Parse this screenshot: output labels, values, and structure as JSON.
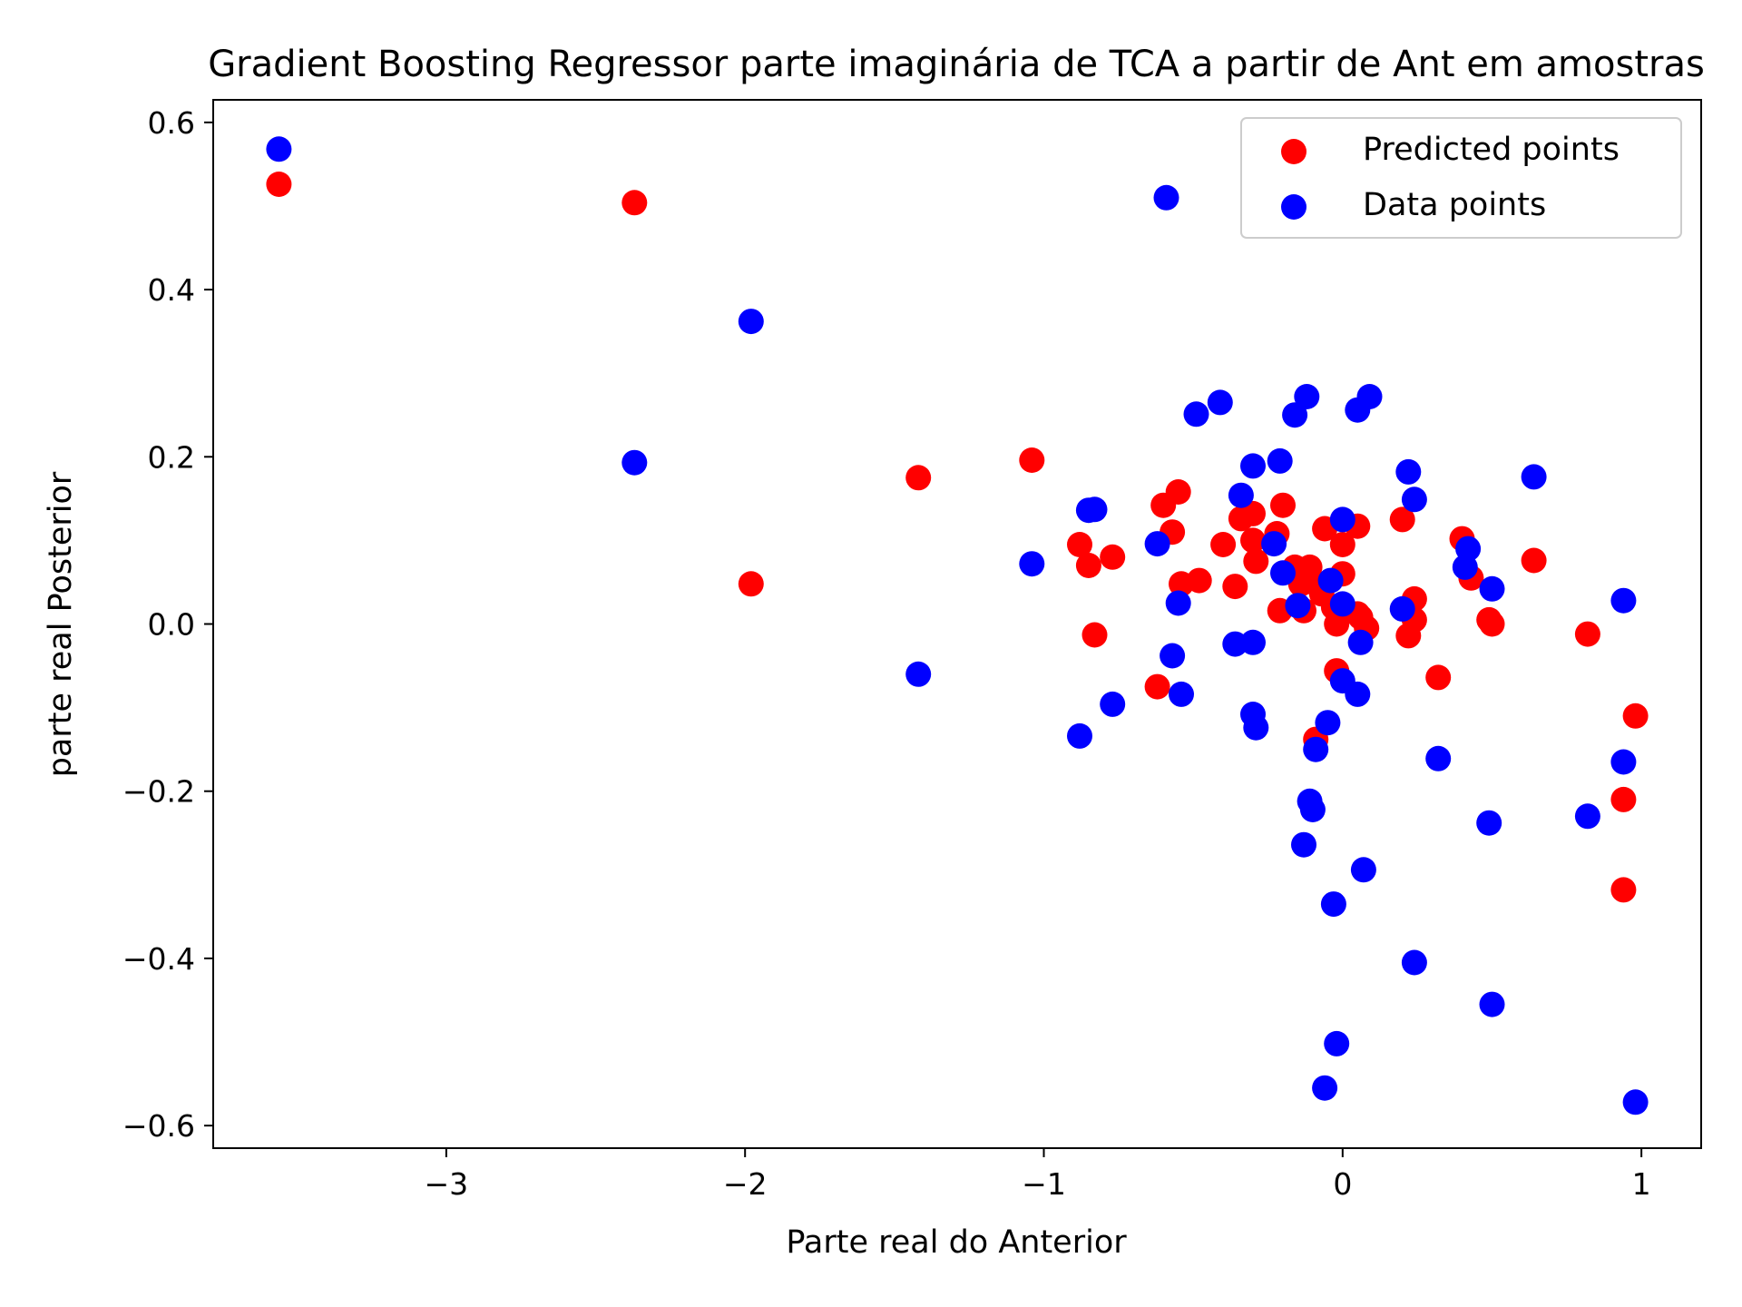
{
  "chart_data": {
    "type": "scatter",
    "title": "Gradient Boosting Regressor parte imaginária de TCA a partir de Ant em amostras",
    "xlabel": "Parte real do Anterior",
    "ylabel": "parte real Posterior",
    "xlim": [
      -3.78,
      1.2
    ],
    "ylim": [
      -0.627,
      0.627
    ],
    "x_ticks": [
      {
        "value": -3,
        "label": "−3"
      },
      {
        "value": -2,
        "label": "−2"
      },
      {
        "value": -1,
        "label": "−1"
      },
      {
        "value": 0,
        "label": "0"
      },
      {
        "value": 1,
        "label": "1"
      }
    ],
    "y_ticks": [
      {
        "value": 0.6,
        "label": "0.6"
      },
      {
        "value": 0.4,
        "label": "0.4"
      },
      {
        "value": 0.2,
        "label": "0.2"
      },
      {
        "value": 0.0,
        "label": "0.0"
      },
      {
        "value": -0.2,
        "label": "−0.2"
      },
      {
        "value": -0.4,
        "label": "−0.4"
      },
      {
        "value": -0.6,
        "label": "−0.6"
      }
    ],
    "grid": false,
    "legend_position": "top-right",
    "series": [
      {
        "name": "Predicted points",
        "color": "#ff0000",
        "points": [
          [
            -3.56,
            0.526
          ],
          [
            -2.37,
            0.504
          ],
          [
            -1.98,
            0.048
          ],
          [
            -1.42,
            0.175
          ],
          [
            -1.04,
            0.196
          ],
          [
            -0.88,
            0.095
          ],
          [
            -0.85,
            0.07
          ],
          [
            -0.83,
            -0.013
          ],
          [
            -0.77,
            0.08
          ],
          [
            -0.62,
            -0.075
          ],
          [
            -0.6,
            0.142
          ],
          [
            -0.57,
            0.11
          ],
          [
            -0.55,
            0.158
          ],
          [
            -0.54,
            0.048
          ],
          [
            -0.48,
            0.052
          ],
          [
            -0.4,
            0.095
          ],
          [
            -0.36,
            0.045
          ],
          [
            -0.34,
            0.126
          ],
          [
            -0.3,
            0.132
          ],
          [
            -0.3,
            0.1
          ],
          [
            -0.29,
            0.075
          ],
          [
            -0.22,
            0.108
          ],
          [
            -0.2,
            0.142
          ],
          [
            -0.21,
            0.016
          ],
          [
            -0.16,
            0.068
          ],
          [
            -0.14,
            0.048
          ],
          [
            -0.13,
            0.016
          ],
          [
            -0.11,
            0.068
          ],
          [
            -0.1,
            0.05
          ],
          [
            -0.09,
            -0.138
          ],
          [
            -0.07,
            0.036
          ],
          [
            -0.06,
            0.114
          ],
          [
            -0.03,
            0.02
          ],
          [
            -0.02,
            -0.056
          ],
          [
            -0.02,
            0.0
          ],
          [
            0.0,
            0.095
          ],
          [
            0.0,
            0.06
          ],
          [
            0.05,
            0.117
          ],
          [
            0.05,
            0.012
          ],
          [
            0.06,
            0.008
          ],
          [
            0.08,
            -0.005
          ],
          [
            0.2,
            0.125
          ],
          [
            0.22,
            -0.014
          ],
          [
            0.24,
            0.03
          ],
          [
            0.24,
            0.005
          ],
          [
            0.32,
            -0.064
          ],
          [
            0.4,
            0.102
          ],
          [
            0.43,
            0.055
          ],
          [
            0.49,
            0.005
          ],
          [
            0.5,
            0.0
          ],
          [
            0.64,
            0.076
          ],
          [
            0.82,
            -0.012
          ],
          [
            0.94,
            -0.21
          ],
          [
            0.94,
            -0.318
          ],
          [
            0.98,
            -0.11
          ]
        ]
      },
      {
        "name": "Data points",
        "color": "#0000ff",
        "points": [
          [
            -3.56,
            0.568
          ],
          [
            -2.37,
            0.193
          ],
          [
            -1.98,
            0.362
          ],
          [
            -1.42,
            -0.06
          ],
          [
            -1.04,
            0.072
          ],
          [
            -0.88,
            -0.134
          ],
          [
            -0.85,
            0.136
          ],
          [
            -0.83,
            0.137
          ],
          [
            -0.77,
            -0.096
          ],
          [
            -0.62,
            0.096
          ],
          [
            -0.59,
            0.51
          ],
          [
            -0.57,
            -0.038
          ],
          [
            -0.55,
            0.025
          ],
          [
            -0.54,
            -0.084
          ],
          [
            -0.49,
            0.251
          ],
          [
            -0.41,
            0.265
          ],
          [
            -0.36,
            -0.024
          ],
          [
            -0.34,
            0.154
          ],
          [
            -0.3,
            0.189
          ],
          [
            -0.3,
            -0.022
          ],
          [
            -0.3,
            -0.108
          ],
          [
            -0.29,
            -0.124
          ],
          [
            -0.23,
            0.096
          ],
          [
            -0.21,
            0.195
          ],
          [
            -0.2,
            0.061
          ],
          [
            -0.16,
            0.25
          ],
          [
            -0.15,
            0.022
          ],
          [
            -0.13,
            -0.264
          ],
          [
            -0.12,
            0.272
          ],
          [
            -0.11,
            -0.212
          ],
          [
            -0.1,
            -0.222
          ],
          [
            -0.09,
            -0.15
          ],
          [
            -0.06,
            -0.555
          ],
          [
            -0.05,
            -0.118
          ],
          [
            -0.04,
            0.052
          ],
          [
            -0.03,
            -0.335
          ],
          [
            -0.02,
            -0.502
          ],
          [
            0.0,
            0.125
          ],
          [
            0.0,
            -0.068
          ],
          [
            0.0,
            0.024
          ],
          [
            0.05,
            -0.084
          ],
          [
            0.05,
            0.256
          ],
          [
            0.06,
            -0.022
          ],
          [
            0.07,
            -0.294
          ],
          [
            0.09,
            0.272
          ],
          [
            0.2,
            0.018
          ],
          [
            0.22,
            0.182
          ],
          [
            0.24,
            0.149
          ],
          [
            0.24,
            -0.405
          ],
          [
            0.32,
            -0.161
          ],
          [
            0.41,
            0.068
          ],
          [
            0.42,
            0.09
          ],
          [
            0.49,
            -0.238
          ],
          [
            0.5,
            -0.455
          ],
          [
            0.5,
            0.042
          ],
          [
            0.64,
            0.176
          ],
          [
            0.82,
            -0.23
          ],
          [
            0.94,
            0.028
          ],
          [
            0.94,
            -0.165
          ],
          [
            0.98,
            -0.572
          ]
        ]
      }
    ]
  }
}
